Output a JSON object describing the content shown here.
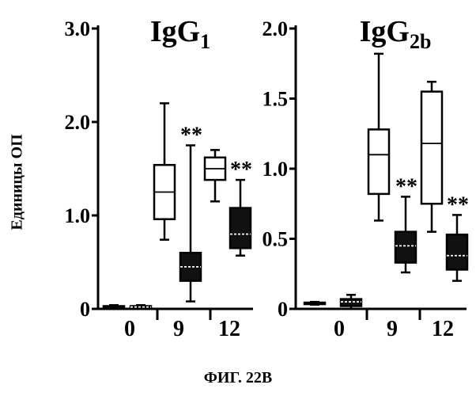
{
  "figure_caption": "ФИГ. 22B",
  "chart_data": {
    "type": "box",
    "shared_ylabel": "Единицы ОП",
    "legend": "none",
    "grid": false,
    "panels": [
      {
        "title": "IgG",
        "title_subscript": "1",
        "ylim": [
          0,
          3.0
        ],
        "yticks": [
          0,
          1.0,
          2.0,
          3.0
        ],
        "ytick_labels": [
          "0",
          "1.0",
          "2.0",
          "3.0"
        ],
        "categories": [
          "0",
          "9",
          "12"
        ],
        "boxes": [
          {
            "group": "0",
            "style": "open",
            "min": 0.0,
            "q1": 0.01,
            "median": 0.02,
            "q3": 0.03,
            "max": 0.04,
            "annotation": ""
          },
          {
            "group": "0",
            "style": "filled",
            "min": 0.0,
            "q1": 0.01,
            "median": 0.02,
            "q3": 0.03,
            "max": 0.04,
            "annotation": ""
          },
          {
            "group": "9",
            "style": "open",
            "min": 0.74,
            "q1": 0.96,
            "median": 1.25,
            "q3": 1.54,
            "max": 2.2,
            "annotation": ""
          },
          {
            "group": "9",
            "style": "filled",
            "min": 0.08,
            "q1": 0.3,
            "median": 0.45,
            "q3": 0.6,
            "max": 1.75,
            "annotation": "**"
          },
          {
            "group": "12",
            "style": "open",
            "min": 1.15,
            "q1": 1.38,
            "median": 1.5,
            "q3": 1.62,
            "max": 1.7,
            "annotation": ""
          },
          {
            "group": "12",
            "style": "filled",
            "min": 0.57,
            "q1": 0.65,
            "median": 0.8,
            "q3": 1.08,
            "max": 1.38,
            "annotation": "**"
          }
        ]
      },
      {
        "title": "IgG",
        "title_subscript": "2b",
        "ylim": [
          0,
          2.0
        ],
        "yticks": [
          0,
          0.5,
          1.0,
          1.5,
          2.0
        ],
        "ytick_labels": [
          "0",
          "0.5",
          "1.0",
          "1.5",
          "2.0"
        ],
        "categories": [
          "0",
          "9",
          "12"
        ],
        "boxes": [
          {
            "group": "0",
            "style": "open",
            "min": 0.03,
            "q1": 0.035,
            "median": 0.04,
            "q3": 0.045,
            "max": 0.05,
            "annotation": ""
          },
          {
            "group": "0",
            "style": "filled",
            "min": 0.0,
            "q1": 0.02,
            "median": 0.05,
            "q3": 0.07,
            "max": 0.1,
            "annotation": ""
          },
          {
            "group": "9",
            "style": "open",
            "min": 0.63,
            "q1": 0.82,
            "median": 1.1,
            "q3": 1.28,
            "max": 1.82,
            "annotation": ""
          },
          {
            "group": "9",
            "style": "filled",
            "min": 0.26,
            "q1": 0.33,
            "median": 0.45,
            "q3": 0.55,
            "max": 0.8,
            "annotation": "**"
          },
          {
            "group": "12",
            "style": "open",
            "min": 0.55,
            "q1": 0.75,
            "median": 1.18,
            "q3": 1.55,
            "max": 1.62,
            "annotation": ""
          },
          {
            "group": "12",
            "style": "filled",
            "min": 0.2,
            "q1": 0.28,
            "median": 0.38,
            "q3": 0.53,
            "max": 0.67,
            "annotation": "**"
          }
        ]
      }
    ]
  }
}
